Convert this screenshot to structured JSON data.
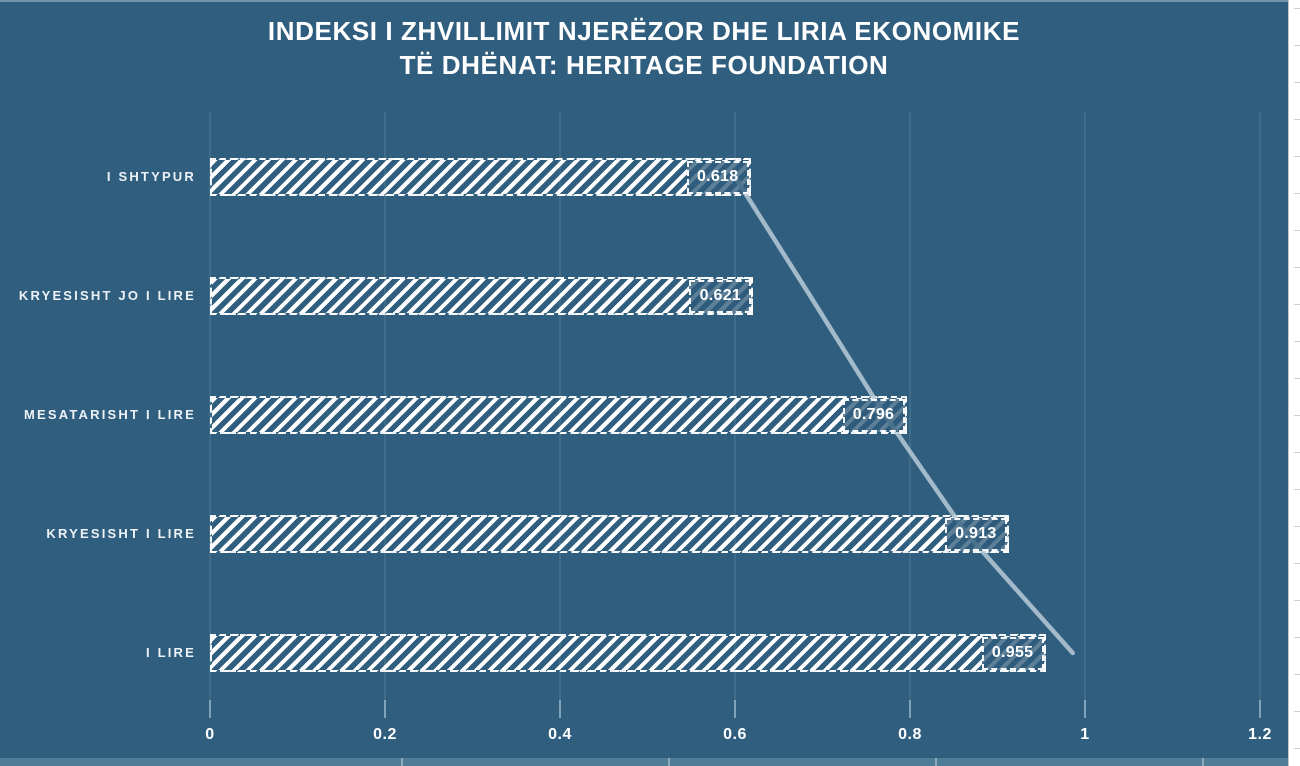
{
  "title": {
    "line1": "INDEKSI I ZHVILLIMIT NJERËZOR DHE LIRIA EKONOMIKE",
    "line2": "TË DHËNAT: HERITAGE FOUNDATION"
  },
  "colors": {
    "background": "#305E7E",
    "text": "#FFFFFF",
    "bar_hatch": "#FFFFFF",
    "gridline": "#4C7892",
    "tick": "#7FA3B9",
    "trend_line": "#B7CAD7",
    "value_box_fill": "#2F5C7B",
    "bottom_strip": "#4F7D97",
    "side_strip": "#FFFFFF",
    "side_strip_line": "#C9CFD4"
  },
  "chart_data": {
    "type": "bar",
    "orientation": "horizontal",
    "title": "INDEKSI I ZHVILLIMIT NJERËZOR DHE LIRIA EKONOMIKE TË DHËNAT: HERITAGE FOUNDATION",
    "categories": [
      "I SHTYPUR",
      "KRYESISHT JO I LIRE",
      "MESATARISHT I LIRE",
      "KRYESISHT I LIRE",
      "I LIRE"
    ],
    "values": [
      0.618,
      0.621,
      0.796,
      0.913,
      0.955
    ],
    "value_labels": [
      "0.618",
      "0.621",
      "0.796",
      "0.913",
      "0.955"
    ],
    "trend_line": {
      "estimated": true,
      "values": [
        0.6,
        0.686,
        0.771,
        0.865,
        0.986
      ]
    },
    "x_ticks": [
      "0",
      "0.2",
      "0.4",
      "0.6",
      "0.8",
      "1",
      "1.2"
    ],
    "x_tick_values": [
      0,
      0.2,
      0.4,
      0.6,
      0.8,
      1.0,
      1.2
    ],
    "xlim": [
      0,
      1.2
    ],
    "grid": "vertical",
    "legend": "none",
    "bar_style": "diagonal-hatch"
  }
}
